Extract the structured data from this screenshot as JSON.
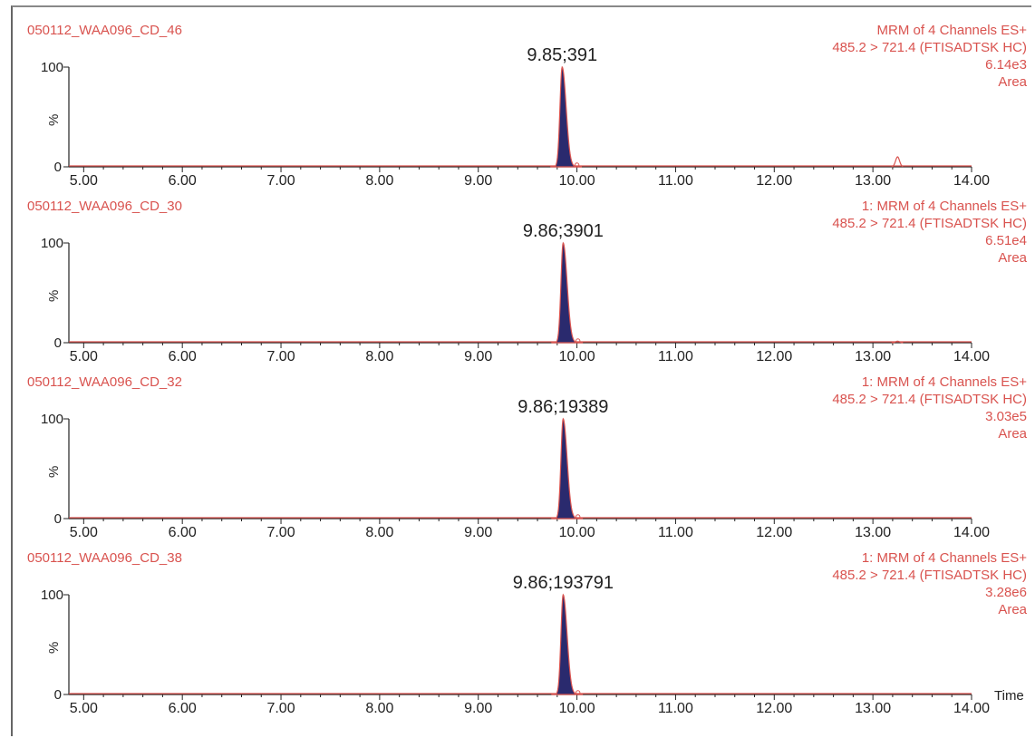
{
  "window": {
    "background": "#ffffff",
    "text_color": "#d9534f"
  },
  "chart_data": [
    {
      "type": "line",
      "sample": "050112_WAA096_CD_46",
      "info_lines": [
        "MRM of 4 Channels ES+",
        "485.2 > 721.4 (FTISADTSK HC)",
        "6.14e3",
        "Area"
      ],
      "peak_label": "9.85;391",
      "peak_time": 9.85,
      "xlim": [
        4.85,
        14.0
      ],
      "ylim": [
        0,
        100
      ],
      "ylabel": "%",
      "y_ticks": [
        "100",
        "0"
      ],
      "x_ticks": [
        "5.00",
        "6.00",
        "7.00",
        "8.00",
        "9.00",
        "10.00",
        "11.00",
        "12.00",
        "13.00",
        "14.00"
      ],
      "x_tick_values": [
        5,
        6,
        7,
        8,
        9,
        10,
        11,
        12,
        13,
        14
      ],
      "xlabel": "",
      "minor_peaks": [
        {
          "x": 13.25,
          "y": 10
        }
      ]
    },
    {
      "type": "line",
      "sample": "050112_WAA096_CD_30",
      "info_lines": [
        "1: MRM of 4 Channels ES+",
        "485.2 > 721.4 (FTISADTSK HC)",
        "6.51e4",
        "Area"
      ],
      "peak_label": "9.86;3901",
      "peak_time": 9.86,
      "xlim": [
        4.85,
        14.0
      ],
      "ylim": [
        0,
        100
      ],
      "ylabel": "%",
      "y_ticks": [
        "100",
        "0"
      ],
      "x_ticks": [
        "5.00",
        "6.00",
        "7.00",
        "8.00",
        "9.00",
        "10.00",
        "11.00",
        "12.00",
        "13.00",
        "14.00"
      ],
      "x_tick_values": [
        5,
        6,
        7,
        8,
        9,
        10,
        11,
        12,
        13,
        14
      ],
      "xlabel": "",
      "minor_peaks": [
        {
          "x": 13.25,
          "y": 1.5
        }
      ]
    },
    {
      "type": "line",
      "sample": "050112_WAA096_CD_32",
      "info_lines": [
        "1: MRM of 4 Channels ES+",
        "485.2 > 721.4 (FTISADTSK HC)",
        "3.03e5",
        "Area"
      ],
      "peak_label": "9.86;19389",
      "peak_time": 9.86,
      "xlim": [
        4.85,
        14.0
      ],
      "ylim": [
        0,
        100
      ],
      "ylabel": "%",
      "y_ticks": [
        "100",
        "0"
      ],
      "x_ticks": [
        "5.00",
        "6.00",
        "7.00",
        "8.00",
        "9.00",
        "10.00",
        "11.00",
        "12.00",
        "13.00",
        "14.00"
      ],
      "x_tick_values": [
        5,
        6,
        7,
        8,
        9,
        10,
        11,
        12,
        13,
        14
      ],
      "xlabel": "",
      "minor_peaks": []
    },
    {
      "type": "line",
      "sample": "050112_WAA096_CD_38",
      "info_lines": [
        "1: MRM of 4 Channels ES+",
        "485.2 > 721.4 (FTISADTSK HC)",
        "3.28e6",
        "Area"
      ],
      "peak_label": "9.86;193791",
      "peak_time": 9.86,
      "xlim": [
        4.85,
        14.0
      ],
      "ylim": [
        0,
        100
      ],
      "ylabel": "%",
      "y_ticks": [
        "100",
        "0"
      ],
      "x_ticks": [
        "5.00",
        "6.00",
        "7.00",
        "8.00",
        "9.00",
        "10.00",
        "11.00",
        "12.00",
        "13.00",
        "14.00"
      ],
      "x_tick_values": [
        5,
        6,
        7,
        8,
        9,
        10,
        11,
        12,
        13,
        14
      ],
      "xlabel": "Time",
      "minor_peaks": []
    }
  ]
}
